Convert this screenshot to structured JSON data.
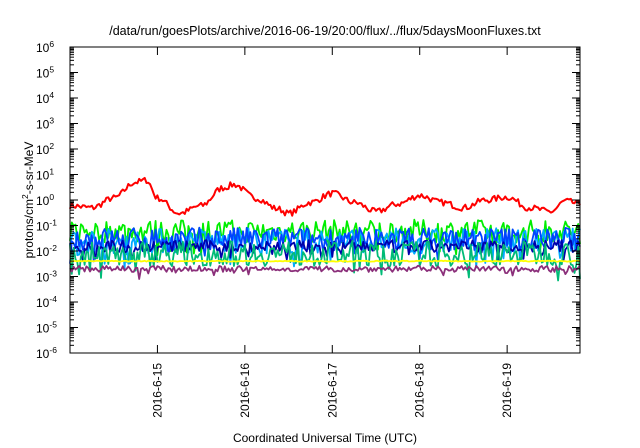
{
  "chart_data": {
    "type": "line",
    "title": "/data/run/goesPlots/archive/2016-06-19/20:00/flux/../flux/5daysMoonFluxes.txt",
    "xlabel": "Coordinated Universal Time (UTC)",
    "ylabel": {
      "base": "protons/cm",
      "sup": "2",
      "rest": "-s-sr-MeV"
    },
    "yscale": "log",
    "ylim": [
      1e-06,
      1000000.0
    ],
    "xlim": [
      "2016-06-14 00:00",
      "2016-06-19 20:00"
    ],
    "y_ticks": [
      {
        "value": 1e-06,
        "base": "10",
        "exp": "-6"
      },
      {
        "value": 1e-05,
        "base": "10",
        "exp": "-5"
      },
      {
        "value": 0.0001,
        "base": "10",
        "exp": "-4"
      },
      {
        "value": 0.001,
        "base": "10",
        "exp": "-3"
      },
      {
        "value": 0.01,
        "base": "10",
        "exp": "-2"
      },
      {
        "value": 0.1,
        "base": "10",
        "exp": "-1"
      },
      {
        "value": 1.0,
        "base": "10",
        "exp": "0"
      },
      {
        "value": 10.0,
        "base": "10",
        "exp": "1"
      },
      {
        "value": 100.0,
        "base": "10",
        "exp": "2"
      },
      {
        "value": 1000.0,
        "base": "10",
        "exp": "3"
      },
      {
        "value": 10000.0,
        "base": "10",
        "exp": "4"
      },
      {
        "value": 100000.0,
        "base": "10",
        "exp": "5"
      },
      {
        "value": 1000000.0,
        "base": "10",
        "exp": "6"
      }
    ],
    "x_ticks": [
      {
        "value": "2016-06-15",
        "label": "2016-6-15"
      },
      {
        "value": "2016-06-16",
        "label": "2016-6-16"
      },
      {
        "value": "2016-06-17",
        "label": "2016-6-17"
      },
      {
        "value": "2016-06-18",
        "label": "2016-6-18"
      },
      {
        "value": "2016-06-19",
        "label": "2016-6-19"
      }
    ],
    "grid": false,
    "series": [
      {
        "color": "#ff0000",
        "style": "smooth",
        "noise": 0.25,
        "values": [
          {
            "x": "2016-06-14 00:00",
            "y": 0.6
          },
          {
            "x": "2016-06-14 06:00",
            "y": 0.5
          },
          {
            "x": "2016-06-14 12:00",
            "y": 1.2
          },
          {
            "x": "2016-06-14 18:00",
            "y": 5
          },
          {
            "x": "2016-06-14 21:00",
            "y": 6
          },
          {
            "x": "2016-06-15 00:00",
            "y": 1.2
          },
          {
            "x": "2016-06-15 06:00",
            "y": 0.3
          },
          {
            "x": "2016-06-15 12:00",
            "y": 0.6
          },
          {
            "x": "2016-06-15 18:00",
            "y": 3
          },
          {
            "x": "2016-06-15 21:00",
            "y": 4
          },
          {
            "x": "2016-06-16 03:00",
            "y": 1.2
          },
          {
            "x": "2016-06-16 09:00",
            "y": 0.45
          },
          {
            "x": "2016-06-16 12:00",
            "y": 0.3
          },
          {
            "x": "2016-06-16 18:00",
            "y": 0.8
          },
          {
            "x": "2016-06-17 00:00",
            "y": 1.8
          },
          {
            "x": "2016-06-17 06:00",
            "y": 0.8
          },
          {
            "x": "2016-06-17 12:00",
            "y": 0.35
          },
          {
            "x": "2016-06-17 18:00",
            "y": 0.7
          },
          {
            "x": "2016-06-18 00:00",
            "y": 1.5
          },
          {
            "x": "2016-06-18 06:00",
            "y": 0.8
          },
          {
            "x": "2016-06-18 12:00",
            "y": 0.5
          },
          {
            "x": "2016-06-18 18:00",
            "y": 1.0
          },
          {
            "x": "2016-06-19 00:00",
            "y": 1.3
          },
          {
            "x": "2016-06-19 06:00",
            "y": 0.5
          },
          {
            "x": "2016-06-19 12:00",
            "y": 0.35
          },
          {
            "x": "2016-06-19 16:00",
            "y": 0.9
          },
          {
            "x": "2016-06-19 20:00",
            "y": 0.7
          }
        ]
      },
      {
        "color": "#00ee00",
        "style": "noisy",
        "noise": 0.45,
        "level": 0.06,
        "values": []
      },
      {
        "color": "#00aaff",
        "style": "noisy",
        "noise": 0.5,
        "level": 0.025,
        "values": []
      },
      {
        "color": "#0044ff",
        "style": "noisy",
        "noise": 0.45,
        "level": 0.03,
        "values": []
      },
      {
        "color": "#0000aa",
        "style": "noisy",
        "noise": 0.25,
        "level": 0.015,
        "values": []
      },
      {
        "color": "#00bb77",
        "style": "noisy",
        "noise": 0.5,
        "level": 0.008,
        "values": []
      },
      {
        "color": "#ffff00",
        "style": "flat",
        "noise": 0.02,
        "level": 0.004,
        "values": []
      },
      {
        "color": "#8b2f7a",
        "style": "noisy",
        "noise": 0.12,
        "level": 0.002,
        "values": []
      }
    ]
  }
}
